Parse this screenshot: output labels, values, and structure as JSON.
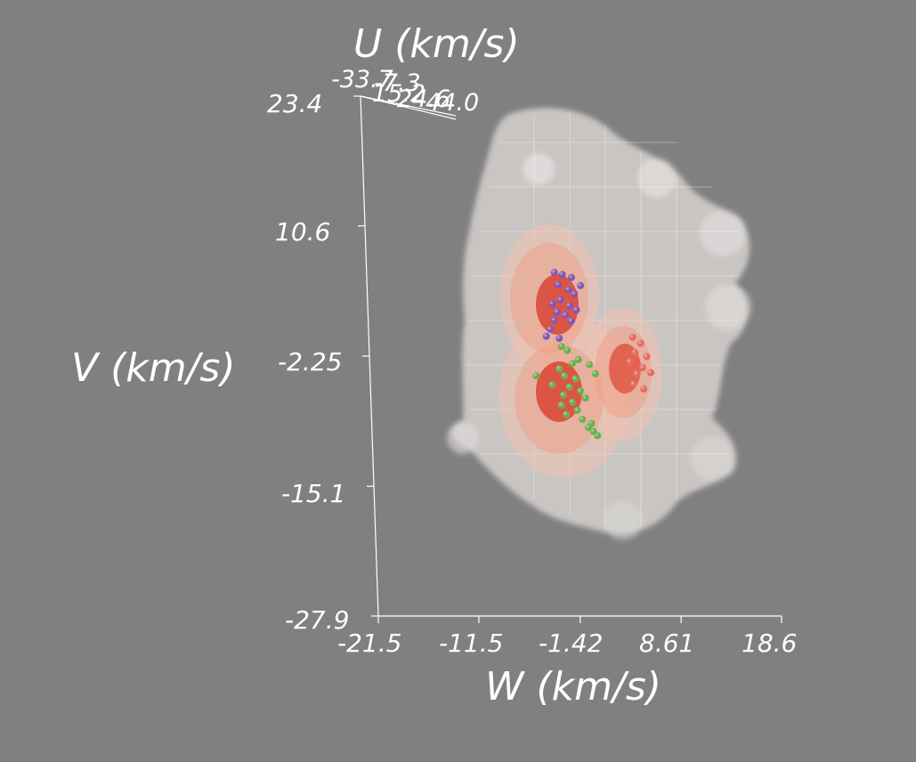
{
  "chart_data": {
    "type": "scatter",
    "title": "",
    "axes": {
      "u": {
        "label": "U (km/s)",
        "tick_labels": [
          "-33.7",
          "-7.3",
          "15.2",
          "24.6",
          "44.0"
        ]
      },
      "v": {
        "label": "V (km/s)",
        "tick_labels": [
          "23.4",
          "10.6",
          "-2.25",
          "-15.1",
          "-27.9"
        ],
        "range": [
          -27.9,
          23.4
        ]
      },
      "w": {
        "label": "W (km/s)",
        "tick_labels": [
          "-21.5",
          "-11.5",
          "-1.42",
          "8.61",
          "18.6"
        ],
        "range": [
          -21.5,
          18.6
        ]
      }
    },
    "surfaces": [
      {
        "kind": "outer density isosurface",
        "color": "#e6e2e0"
      },
      {
        "kind": "middle density isosurface",
        "color": "#f0b8a4"
      },
      {
        "kind": "inner density isosurface",
        "color": "#e8604a"
      }
    ],
    "series": [
      {
        "color": "#8a55c8",
        "points": [
          {
            "w": -4.0,
            "v": 6.0
          },
          {
            "w": -3.2,
            "v": 5.8
          },
          {
            "w": -2.3,
            "v": 5.5
          },
          {
            "w": -3.6,
            "v": 4.8
          },
          {
            "w": -2.6,
            "v": 4.3
          },
          {
            "w": -1.4,
            "v": 4.7
          },
          {
            "w": -2.0,
            "v": 3.9
          },
          {
            "w": -3.4,
            "v": 3.3
          },
          {
            "w": -2.5,
            "v": 2.7
          },
          {
            "w": -4.2,
            "v": 2.9
          },
          {
            "w": -3.7,
            "v": 2.1
          },
          {
            "w": -2.9,
            "v": 1.8
          },
          {
            "w": -1.8,
            "v": 2.3
          },
          {
            "w": -4.0,
            "v": 1.3
          },
          {
            "w": -2.3,
            "v": 1.2
          },
          {
            "w": -4.4,
            "v": 0.4
          },
          {
            "w": -4.8,
            "v": -0.3
          },
          {
            "w": -3.5,
            "v": -0.5
          }
        ]
      },
      {
        "color": "#6cc04a",
        "points": [
          {
            "w": -3.3,
            "v": -1.3
          },
          {
            "w": -2.7,
            "v": -1.7
          },
          {
            "w": -2.2,
            "v": -3.0
          },
          {
            "w": -3.5,
            "v": -3.5
          },
          {
            "w": -1.6,
            "v": -2.6
          },
          {
            "w": -0.5,
            "v": -3.1
          },
          {
            "w": 0.1,
            "v": -4.0
          },
          {
            "w": -3.0,
            "v": -4.2
          },
          {
            "w": -1.9,
            "v": -4.5
          },
          {
            "w": -5.8,
            "v": -4.2
          },
          {
            "w": -2.5,
            "v": -5.3
          },
          {
            "w": -1.4,
            "v": -5.7
          },
          {
            "w": -3.1,
            "v": -6.1
          },
          {
            "w": -0.9,
            "v": -6.4
          },
          {
            "w": -2.2,
            "v": -6.8
          },
          {
            "w": -3.3,
            "v": -7.1
          },
          {
            "w": -1.7,
            "v": -7.6
          },
          {
            "w": -2.8,
            "v": -8.0
          },
          {
            "w": -4.2,
            "v": -5.1
          },
          {
            "w": -1.2,
            "v": -8.5
          },
          {
            "w": -0.3,
            "v": -8.9
          },
          {
            "w": -0.1,
            "v": -9.7
          },
          {
            "w": 0.3,
            "v": -10.1
          },
          {
            "w": -0.6,
            "v": -9.3
          }
        ]
      },
      {
        "color": "#ff6e60",
        "points": [
          {
            "w": 3.8,
            "v": -0.4
          },
          {
            "w": 4.6,
            "v": -1.0
          },
          {
            "w": 4.0,
            "v": -1.9
          },
          {
            "w": 5.2,
            "v": -2.3
          },
          {
            "w": 3.5,
            "v": -2.8
          },
          {
            "w": 4.8,
            "v": -3.4
          },
          {
            "w": 4.2,
            "v": -4.0
          },
          {
            "w": 5.6,
            "v": -3.9
          },
          {
            "w": 3.9,
            "v": -5.0
          },
          {
            "w": 4.9,
            "v": -5.5
          }
        ]
      }
    ]
  }
}
